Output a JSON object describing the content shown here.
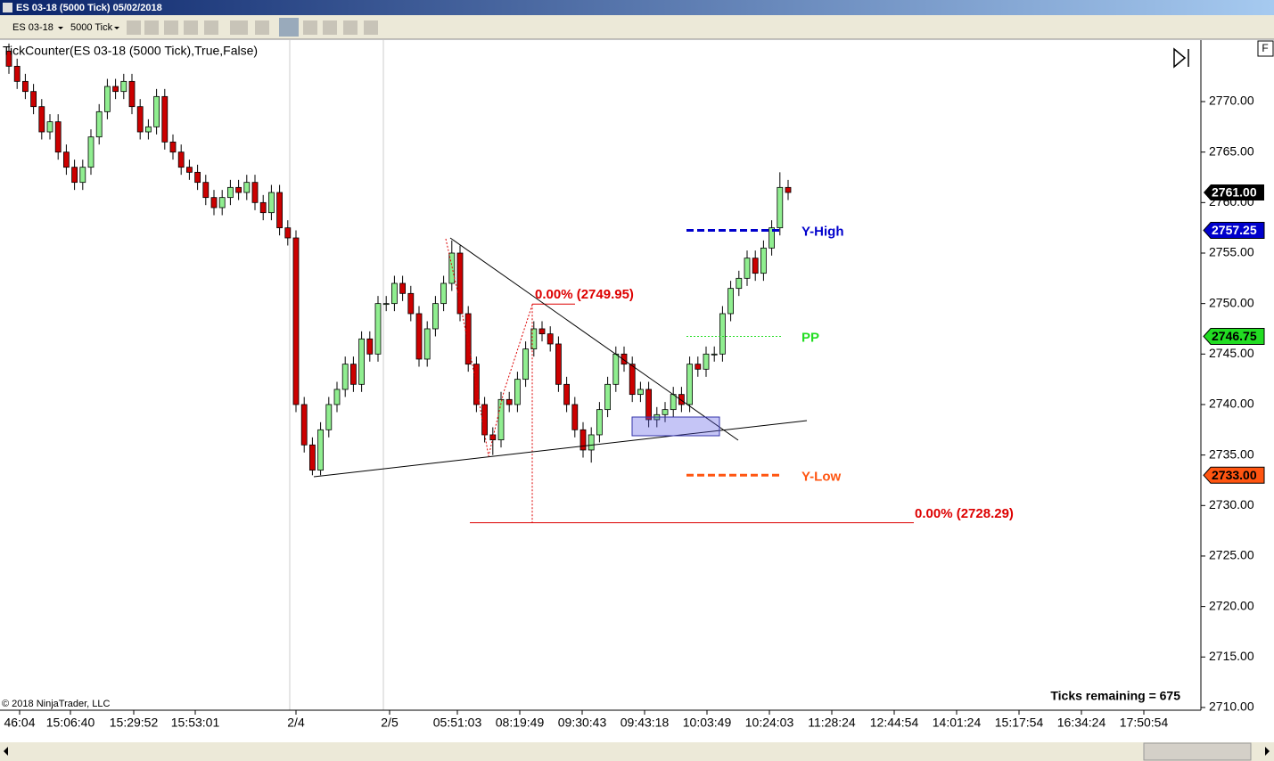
{
  "window": {
    "title": "ES 03-18 (5000 Tick)  05/02/2018"
  },
  "toolbar": {
    "instrument": "ES 03-18",
    "interval": "5000 Tick"
  },
  "indicator_label": "TickCounter(ES 03-18 (5000 Tick),True,False)",
  "copyright": "© 2018 NinjaTrader, LLC",
  "ticks_remaining": "Ticks remaining = 675",
  "panel_button": "F",
  "chart_data": {
    "type": "candlestick",
    "open": [
      2775,
      2773.5,
      2772,
      2771,
      2769.5,
      2767,
      2768,
      2765,
      2763.5,
      2762,
      2763.5,
      2766.5,
      2769,
      2771.5,
      2771,
      2772,
      2769.5,
      2767,
      2767.5,
      2770.5,
      2766,
      2765,
      2763.5,
      2763,
      2762,
      2760.5,
      2759.5,
      2760.5,
      2761.5,
      2761,
      2762,
      2760,
      2759,
      2761,
      2757.5,
      2756.5,
      2740,
      2736,
      2733.5,
      2737.5,
      2740,
      2741.5,
      2744,
      2742,
      2746.5,
      2745,
      2750,
      2750,
      2752,
      2751,
      2749,
      2744.5,
      2747.5,
      2750,
      2752,
      2755,
      2749,
      2744,
      2740,
      2737,
      2736.5,
      2740.5,
      2740,
      2742.5,
      2745.5,
      2747.5,
      2747,
      2746,
      2742,
      2740,
      2737.5,
      2735.5,
      2737,
      2739.5,
      2742,
      2745,
      2744,
      2741,
      2741.5,
      2738.5,
      2739,
      2739.5,
      2741,
      2740,
      2744,
      2743.5,
      2745,
      2745,
      2749,
      2751.5,
      2752.5,
      2754.5,
      2753,
      2755.5,
      2757.5,
      2761.5
    ],
    "high": [
      2775.75,
      2774.25,
      2772.75,
      2771.75,
      2770.25,
      2768.75,
      2768.75,
      2765.75,
      2764.25,
      2764.25,
      2767.25,
      2769.75,
      2772.25,
      2772.25,
      2772.75,
      2772.75,
      2770.25,
      2768.25,
      2771.25,
      2771.25,
      2766.75,
      2765.75,
      2764.25,
      2763.75,
      2762.75,
      2761.25,
      2761.25,
      2762.25,
      2762.25,
      2762.75,
      2762.75,
      2760.75,
      2761.75,
      2761.75,
      2758.25,
      2757.25,
      2740.75,
      2736.75,
      2738.25,
      2740.75,
      2742.25,
      2744.75,
      2744.75,
      2747.25,
      2747.25,
      2750.75,
      2750.75,
      2752.75,
      2752.75,
      2751.75,
      2749.75,
      2748.25,
      2750.75,
      2752.75,
      2756.25,
      2755.75,
      2749.75,
      2744.75,
      2740.75,
      2737.75,
      2741.25,
      2741.25,
      2743.25,
      2746.25,
      2748.25,
      2748.25,
      2747.75,
      2746.75,
      2742.75,
      2740.75,
      2738.25,
      2737.75,
      2740.25,
      2742.75,
      2745.75,
      2745.75,
      2744.75,
      2742.25,
      2742.25,
      2739.75,
      2740.25,
      2741.75,
      2741.75,
      2744.75,
      2744.75,
      2745.75,
      2745.75,
      2749.75,
      2752.25,
      2753.25,
      2755.25,
      2755.25,
      2756.25,
      2758.25,
      2763,
      2762.25
    ],
    "low": [
      2772.75,
      2771.25,
      2770.25,
      2768.75,
      2766.25,
      2766.25,
      2764.25,
      2762.75,
      2761.25,
      2761.25,
      2762.75,
      2765.75,
      2768.25,
      2770.25,
      2770.25,
      2768.75,
      2766.25,
      2766.25,
      2766.75,
      2765.25,
      2764.25,
      2762.75,
      2762.25,
      2761.25,
      2759.75,
      2758.75,
      2758.75,
      2759.75,
      2760.25,
      2760.25,
      2759.25,
      2758.25,
      2758.25,
      2756.75,
      2755.75,
      2739.25,
      2735.25,
      2733,
      2733,
      2736.75,
      2739.25,
      2740.75,
      2741.25,
      2741.25,
      2744.25,
      2744.25,
      2749.25,
      2749.25,
      2750.25,
      2748.25,
      2743.75,
      2743.75,
      2746.75,
      2749.25,
      2751.25,
      2748.25,
      2743.25,
      2739.25,
      2736.25,
      2735,
      2735.75,
      2739.25,
      2739.25,
      2741.75,
      2744.75,
      2746.25,
      2745.25,
      2741.25,
      2739.25,
      2736.75,
      2734.75,
      2734.25,
      2736.25,
      2738.75,
      2741.25,
      2743.25,
      2740.25,
      2740.25,
      2737.75,
      2737.75,
      2738.25,
      2738.75,
      2739.25,
      2739.25,
      2742.75,
      2742.75,
      2744.25,
      2744.25,
      2748.25,
      2750.75,
      2751.75,
      2752.25,
      2752.25,
      2754.75,
      2756.75,
      2760.25
    ],
    "close": [
      2773.5,
      2772,
      2771,
      2769.5,
      2767,
      2768,
      2765,
      2763.5,
      2762,
      2763.5,
      2766.5,
      2769,
      2771.5,
      2771,
      2772,
      2769.5,
      2767,
      2767.5,
      2770.5,
      2766,
      2765,
      2763.5,
      2763,
      2762,
      2760.5,
      2759.5,
      2760.5,
      2761.5,
      2761,
      2762,
      2760,
      2759,
      2761,
      2757.5,
      2756.5,
      2740,
      2736,
      2733.5,
      2737.5,
      2740,
      2741.5,
      2744,
      2742,
      2746.5,
      2745,
      2750,
      2750,
      2752,
      2751,
      2749,
      2744.5,
      2747.5,
      2750,
      2752,
      2755,
      2749,
      2744,
      2740,
      2737,
      2736.5,
      2740.5,
      2740,
      2742.5,
      2745.5,
      2747.5,
      2747,
      2746,
      2742,
      2740,
      2737.5,
      2735.5,
      2737,
      2739.5,
      2742,
      2745,
      2744,
      2741,
      2741.5,
      2738.5,
      2739,
      2739.5,
      2741,
      2740,
      2744,
      2743.5,
      2745,
      2745,
      2749,
      2751.5,
      2752.5,
      2754.5,
      2753,
      2755.5,
      2757.5,
      2761.5,
      2761
    ],
    "up_color": "#90ee90",
    "down_color": "#cc0000",
    "xtick_labels": [
      "46:04",
      "15:06:40",
      "15:29:52",
      "15:53:01",
      "2/4",
      "2/5",
      "05:51:03",
      "08:19:49",
      "09:30:43",
      "09:43:18",
      "10:03:49",
      "10:24:03",
      "11:28:24",
      "12:44:54",
      "14:01:24",
      "15:17:54",
      "16:34:24",
      "17:50:54"
    ],
    "ylim": [
      2709.73,
      2776.09
    ],
    "yticks": [
      {
        "value": 2710,
        "label": "2710.00"
      },
      {
        "value": 2715,
        "label": "2715.00"
      },
      {
        "value": 2720,
        "label": "2720.00"
      },
      {
        "value": 2725,
        "label": "2725.00"
      },
      {
        "value": 2730,
        "label": "2730.00"
      },
      {
        "value": 2735,
        "label": "2735.00"
      },
      {
        "value": 2740,
        "label": "2740.00"
      },
      {
        "value": 2745,
        "label": "2745.00"
      },
      {
        "value": 2750,
        "label": "2750.00"
      },
      {
        "value": 2755,
        "label": "2755.00"
      },
      {
        "value": 2760,
        "label": "2760.00"
      },
      {
        "value": 2765,
        "label": "2765.00"
      },
      {
        "value": 2770,
        "label": "2770.00"
      }
    ],
    "last_price": {
      "value": 2761,
      "label": "2761.00",
      "color": "#000000"
    },
    "levels": [
      {
        "name": "Y-High",
        "value": 2757.25,
        "label": "2757.25",
        "color": "#0000cc",
        "style": "dashed"
      },
      {
        "name": "PP",
        "value": 2746.75,
        "label": "2746.75",
        "color": "#22dd22",
        "style": "dotted"
      },
      {
        "name": "Y-Low",
        "value": 2733,
        "label": "2733.00",
        "color": "#ff5511",
        "style": "dashed"
      }
    ],
    "fib_levels": [
      {
        "value": 2749.95,
        "label": "0.00% (2749.95)",
        "color": "#dd0000"
      },
      {
        "value": 2728.29,
        "label": "0.00% (2728.29)",
        "color": "#dd0000"
      }
    ]
  }
}
